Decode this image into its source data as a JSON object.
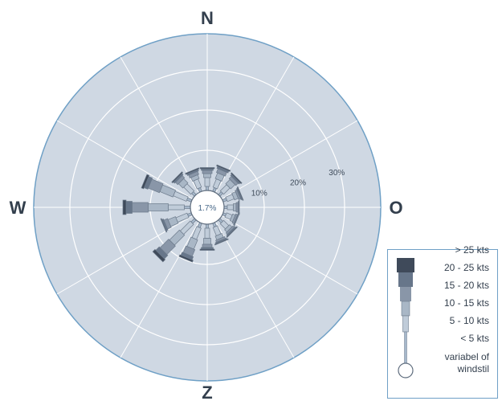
{
  "chart_data": {
    "type": "wind-rose",
    "directions": [
      "N",
      "NNO",
      "NO",
      "ONO",
      "O",
      "OZO",
      "ZO",
      "ZZO",
      "Z",
      "ZZW",
      "ZW",
      "WZW",
      "W",
      "WNW",
      "NW",
      "NNW"
    ],
    "direction_angles_deg": [
      0,
      22.5,
      45,
      67.5,
      90,
      112.5,
      135,
      157.5,
      180,
      202.5,
      225,
      247.5,
      270,
      292.5,
      315,
      337.5
    ],
    "compass_labels": {
      "n": "N",
      "e": "O",
      "s": "Z",
      "w": "W"
    },
    "center_value_label": "1.7%",
    "radial_axis": {
      "rings": [
        10,
        20,
        30
      ],
      "ring_labels": [
        "10%",
        "20%",
        "30%"
      ],
      "max": 35
    },
    "speed_classes": [
      "< 5 kts",
      "5 - 10 kts",
      "10 - 15 kts",
      "15 - 20 kts",
      "20 - 25 kts",
      "> 25 kts"
    ],
    "colors": {
      "background_disc": "#cfd8e3",
      "rim": "#6fa0c6",
      "grid": "#ffffff",
      "classes": [
        "#a6b8cb",
        "#c0ccd9",
        "#a9b7c6",
        "#8996a8",
        "#67768a",
        "#3f4a5a"
      ]
    },
    "series": [
      {
        "name": "< 5 kts",
        "values": [
          1.0,
          1.0,
          1.0,
          1.0,
          0.8,
          0.8,
          1.0,
          1.0,
          1.0,
          1.2,
          1.2,
          1.0,
          1.5,
          1.2,
          1.0,
          1.0
        ]
      },
      {
        "name": "5 - 10 kts",
        "values": [
          2.2,
          2.2,
          2.2,
          1.8,
          1.5,
          1.5,
          1.8,
          2.2,
          2.5,
          3.0,
          3.5,
          3.0,
          4.0,
          3.5,
          2.5,
          2.2
        ]
      },
      {
        "name": "10 - 15 kts",
        "values": [
          1.0,
          1.5,
          1.5,
          1.0,
          0.7,
          0.7,
          0.8,
          1.0,
          1.5,
          2.5,
          3.5,
          2.0,
          5.0,
          3.5,
          1.5,
          1.0
        ]
      },
      {
        "name": "15 - 20 kts",
        "values": [
          0.8,
          1.0,
          0.8,
          0.5,
          0.5,
          0.5,
          0.5,
          0.5,
          0.8,
          1.8,
          3.0,
          1.0,
          4.0,
          3.0,
          0.8,
          0.8
        ]
      },
      {
        "name": "20 - 25 kts",
        "values": [
          0.4,
          0.5,
          0.4,
          0.3,
          0.2,
          0.2,
          0.3,
          0.3,
          0.4,
          0.8,
          1.2,
          0.4,
          1.5,
          1.0,
          0.4,
          0.4
        ]
      },
      {
        "name": "> 25 kts",
        "values": [
          0.3,
          0.3,
          0.3,
          0.2,
          0.1,
          0.1,
          0.2,
          0.2,
          0.3,
          0.5,
          0.8,
          0.2,
          0.8,
          0.6,
          0.3,
          0.3
        ]
      }
    ]
  },
  "legend": {
    "items": [
      "> 25 kts",
      "20 - 25 kts",
      "15 - 20 kts",
      "10 - 15 kts",
      "5 - 10 kts",
      "< 5 kts"
    ],
    "calm_label_line1": "variabel of",
    "calm_label_line2": "windstil"
  }
}
